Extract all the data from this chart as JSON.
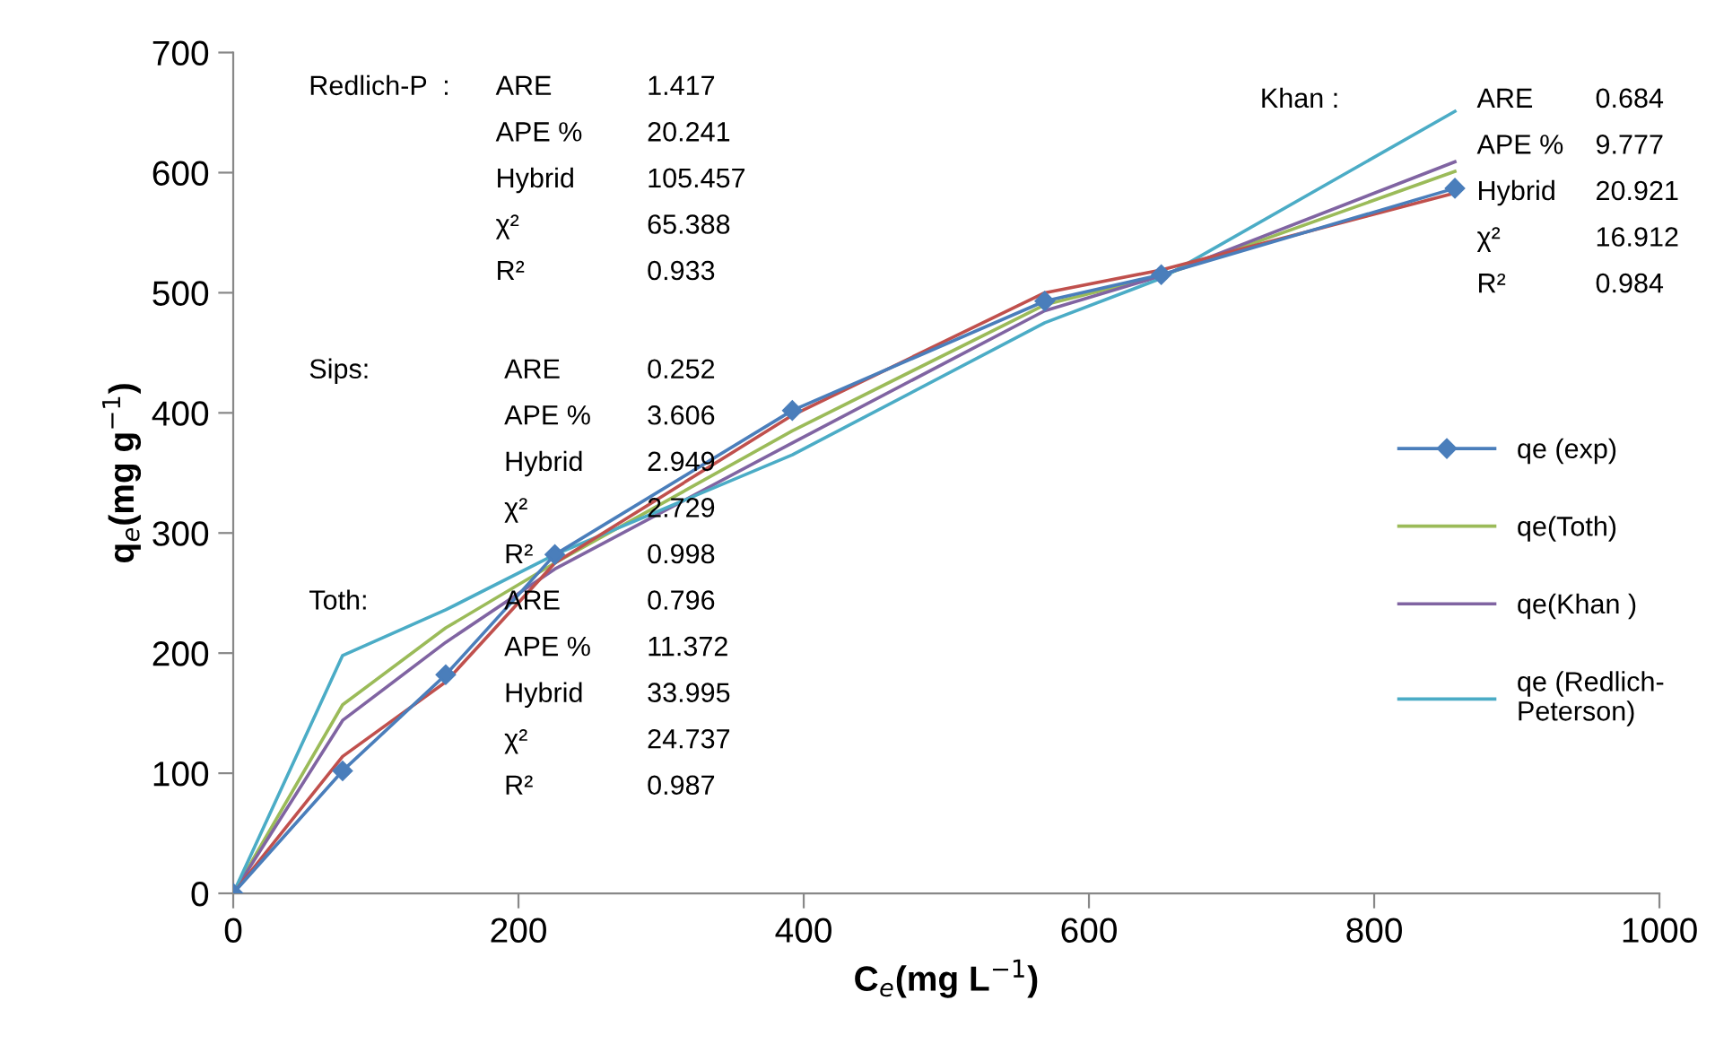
{
  "chart_data": {
    "type": "line",
    "xlabel": "C$_{e}$(mg L$^{−1}$)",
    "ylabel": "q$_{e}$(mg g$^{−1}$)",
    "xlim": [
      0,
      1000
    ],
    "xticks": [
      0,
      200,
      400,
      600,
      800,
      1000
    ],
    "ylim": [
      0,
      700
    ],
    "yticks": [
      0,
      100,
      200,
      300,
      400,
      500,
      600,
      700
    ],
    "grid": false,
    "legend": "right",
    "line_style": "solid",
    "x": [
      0,
      76.7,
      149,
      225.5,
      392,
      569,
      650.7,
      856.6
    ],
    "series": [
      {
        "name": "qe (exp)",
        "color": "#4a7ebb",
        "marker": "diamond",
        "values": [
          0,
          102,
          182,
          282,
          402,
          493,
          515,
          587
        ]
      },
      {
        "name": "qe(Toth)",
        "color": "#9bbb59",
        "marker": "none",
        "values": [
          0,
          157,
          221,
          275,
          385,
          490,
          514,
          601
        ]
      },
      {
        "name": "qe(Khan )",
        "color": "#8064a2",
        "marker": "none",
        "values": [
          0,
          144,
          209,
          270,
          375,
          485,
          514,
          609
        ]
      },
      {
        "name": "qe (Redlich-Peterson)",
        "color": "#4bacc6",
        "marker": "none",
        "values": [
          0,
          198,
          236,
          282,
          365,
          475,
          512,
          651
        ]
      },
      {
        "color": "#c0504d",
        "marker": "none",
        "values": [
          0,
          114,
          176,
          275,
          398,
          500,
          519,
          583
        ]
      }
    ],
    "annotations": [
      "Redlich-P  :\tARE\t1.417\n\tAPE %\t20.241\n\tHybrid\t105.457\n\tχ²\t65.388\n\tR²\t0.933",
      "Sips:\tARE\t0.252\n\tAPE %\t3.606\n\tHybrid\t2.949\n\tχ²\t2.729\n\tR²\t0.998",
      "Toth:\tARE\t0.796\n\tAPE %\t11.372\n\tHybrid\t33.995\n\tχ²\t24.737\n\tR²\t0.987",
      "Khan :\tARE\t0.684\n\tAPE %\t9.777\n\tHybrid\t20.921\n\tχ²\t16.912\n\tR²\t0.984"
    ]
  }
}
